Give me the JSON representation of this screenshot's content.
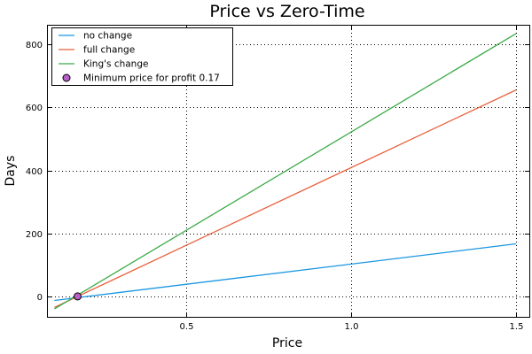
{
  "chart_data": {
    "type": "line",
    "title": "Price vs Zero-Time",
    "xlabel": "Price",
    "ylabel": "Days",
    "xlim": [
      0.08,
      1.54
    ],
    "ylim": [
      -65,
      860
    ],
    "x_ticks": [
      0.5,
      1.0,
      1.5
    ],
    "x_tick_labels": [
      "0.5",
      "1.0",
      "1.5"
    ],
    "y_ticks": [
      0,
      200,
      400,
      600,
      800
    ],
    "y_tick_labels": [
      "0",
      "200",
      "400",
      "600",
      "800"
    ],
    "grid": true,
    "legend_position": "top-left",
    "series": [
      {
        "name": "no change",
        "color": "#1a96e0",
        "points": [
          [
            0.1,
            -13
          ],
          [
            1.5,
            167
          ]
        ]
      },
      {
        "name": "full change",
        "color": "#e8623f",
        "points": [
          [
            0.1,
            -35
          ],
          [
            1.5,
            656
          ]
        ]
      },
      {
        "name": "King's change",
        "color": "#3caa48",
        "points": [
          [
            0.1,
            -40
          ],
          [
            1.5,
            835
          ]
        ]
      }
    ],
    "marker": {
      "name": "Minimum price for profit 0.17",
      "x": 0.17,
      "y": 0,
      "color": "#b85fc9"
    }
  }
}
